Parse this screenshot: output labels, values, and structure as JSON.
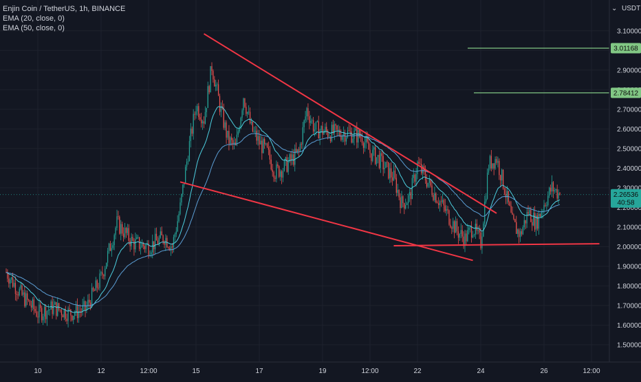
{
  "legend": {
    "symbol": "Enjin Coin / TetherUS, 1h, BINANCE",
    "ema1": "EMA (20, close, 0)",
    "ema2": "EMA (50, close, 0)"
  },
  "chart_data": {
    "type": "candlestick",
    "currency": "USDT",
    "ylim": [
      1.44,
      3.18
    ],
    "y_ticks": [
      "3.10000",
      "3.00000",
      "2.90000",
      "2.80000",
      "2.70000",
      "2.60000",
      "2.50000",
      "2.40000",
      "2.30000",
      "2.20000",
      "2.10000",
      "2.00000",
      "1.90000",
      "1.80000",
      "1.70000",
      "1.60000",
      "1.50000"
    ],
    "x_ticks": [
      "10",
      "12",
      "12:00",
      "15",
      "17",
      "19",
      "12:00",
      "22",
      "24",
      "26",
      "12:00"
    ],
    "price_levels": [
      {
        "label": "3.01168",
        "value": 3.01168,
        "color": "#81c784"
      },
      {
        "label": "2.78412",
        "value": 2.78412,
        "color": "#81c784"
      }
    ],
    "current_price": {
      "label": "2.26536",
      "value": 2.26536,
      "countdown": "40:58",
      "color": "#26a69a"
    },
    "trendlines": [
      {
        "name": "upper-wedge-line",
        "from": [
          "15 06:00",
          3.085
        ],
        "to": [
          "24 12:00",
          2.17
        ]
      },
      {
        "name": "lower-wedge-line",
        "from": [
          "14 12:00",
          2.33
        ],
        "to": [
          "23 18:00",
          1.93
        ]
      },
      {
        "name": "support-line",
        "from": [
          "21 06:00",
          2.005
        ],
        "to": [
          "27 18:00",
          2.015
        ]
      }
    ],
    "series_anchors": [
      {
        "x": "9 00:00",
        "y": 1.87
      },
      {
        "x": "9 12:00",
        "y": 1.75
      },
      {
        "x": "10 00:00",
        "y": 1.66
      },
      {
        "x": "10 12:00",
        "y": 1.69
      },
      {
        "x": "11 00:00",
        "y": 1.66
      },
      {
        "x": "11 12:00",
        "y": 1.68
      },
      {
        "x": "12 00:00",
        "y": 1.84
      },
      {
        "x": "12 06:00",
        "y": 1.98
      },
      {
        "x": "12 12:00",
        "y": 2.12
      },
      {
        "x": "13 00:00",
        "y": 2.02
      },
      {
        "x": "13 12:00",
        "y": 2.0
      },
      {
        "x": "14 00:00",
        "y": 2.05
      },
      {
        "x": "14 06:00",
        "y": 2.0
      },
      {
        "x": "14 12:00",
        "y": 2.2
      },
      {
        "x": "14 18:00",
        "y": 2.48
      },
      {
        "x": "15 00:00",
        "y": 2.72
      },
      {
        "x": "15 06:00",
        "y": 2.65
      },
      {
        "x": "15 12:00",
        "y": 2.92
      },
      {
        "x": "15 18:00",
        "y": 2.72
      },
      {
        "x": "16 00:00",
        "y": 2.55
      },
      {
        "x": "16 06:00",
        "y": 2.5
      },
      {
        "x": "16 12:00",
        "y": 2.77
      },
      {
        "x": "16 18:00",
        "y": 2.6
      },
      {
        "x": "17 00:00",
        "y": 2.53
      },
      {
        "x": "17 06:00",
        "y": 2.48
      },
      {
        "x": "17 12:00",
        "y": 2.38
      },
      {
        "x": "17 18:00",
        "y": 2.4
      },
      {
        "x": "18 06:00",
        "y": 2.48
      },
      {
        "x": "18 12:00",
        "y": 2.7
      },
      {
        "x": "18 18:00",
        "y": 2.6
      },
      {
        "x": "19 06:00",
        "y": 2.58
      },
      {
        "x": "19 18:00",
        "y": 2.58
      },
      {
        "x": "20 06:00",
        "y": 2.56
      },
      {
        "x": "20 12:00",
        "y": 2.48
      },
      {
        "x": "20 18:00",
        "y": 2.45
      },
      {
        "x": "21 06:00",
        "y": 2.35
      },
      {
        "x": "21 12:00",
        "y": 2.22
      },
      {
        "x": "21 18:00",
        "y": 2.25
      },
      {
        "x": "22 00:00",
        "y": 2.42
      },
      {
        "x": "22 06:00",
        "y": 2.35
      },
      {
        "x": "22 12:00",
        "y": 2.28
      },
      {
        "x": "22 18:00",
        "y": 2.22
      },
      {
        "x": "23 06:00",
        "y": 2.08
      },
      {
        "x": "23 12:00",
        "y": 2.04
      },
      {
        "x": "23 18:00",
        "y": 2.1
      },
      {
        "x": "24 00:00",
        "y": 2.02
      },
      {
        "x": "24 06:00",
        "y": 2.42
      },
      {
        "x": "24 12:00",
        "y": 2.45
      },
      {
        "x": "24 18:00",
        "y": 2.3
      },
      {
        "x": "25 00:00",
        "y": 2.12
      },
      {
        "x": "25 06:00",
        "y": 2.06
      },
      {
        "x": "25 12:00",
        "y": 2.18
      },
      {
        "x": "25 18:00",
        "y": 2.12
      },
      {
        "x": "26 00:00",
        "y": 2.22
      },
      {
        "x": "26 06:00",
        "y": 2.3
      },
      {
        "x": "26 12:00",
        "y": 2.265
      }
    ]
  }
}
